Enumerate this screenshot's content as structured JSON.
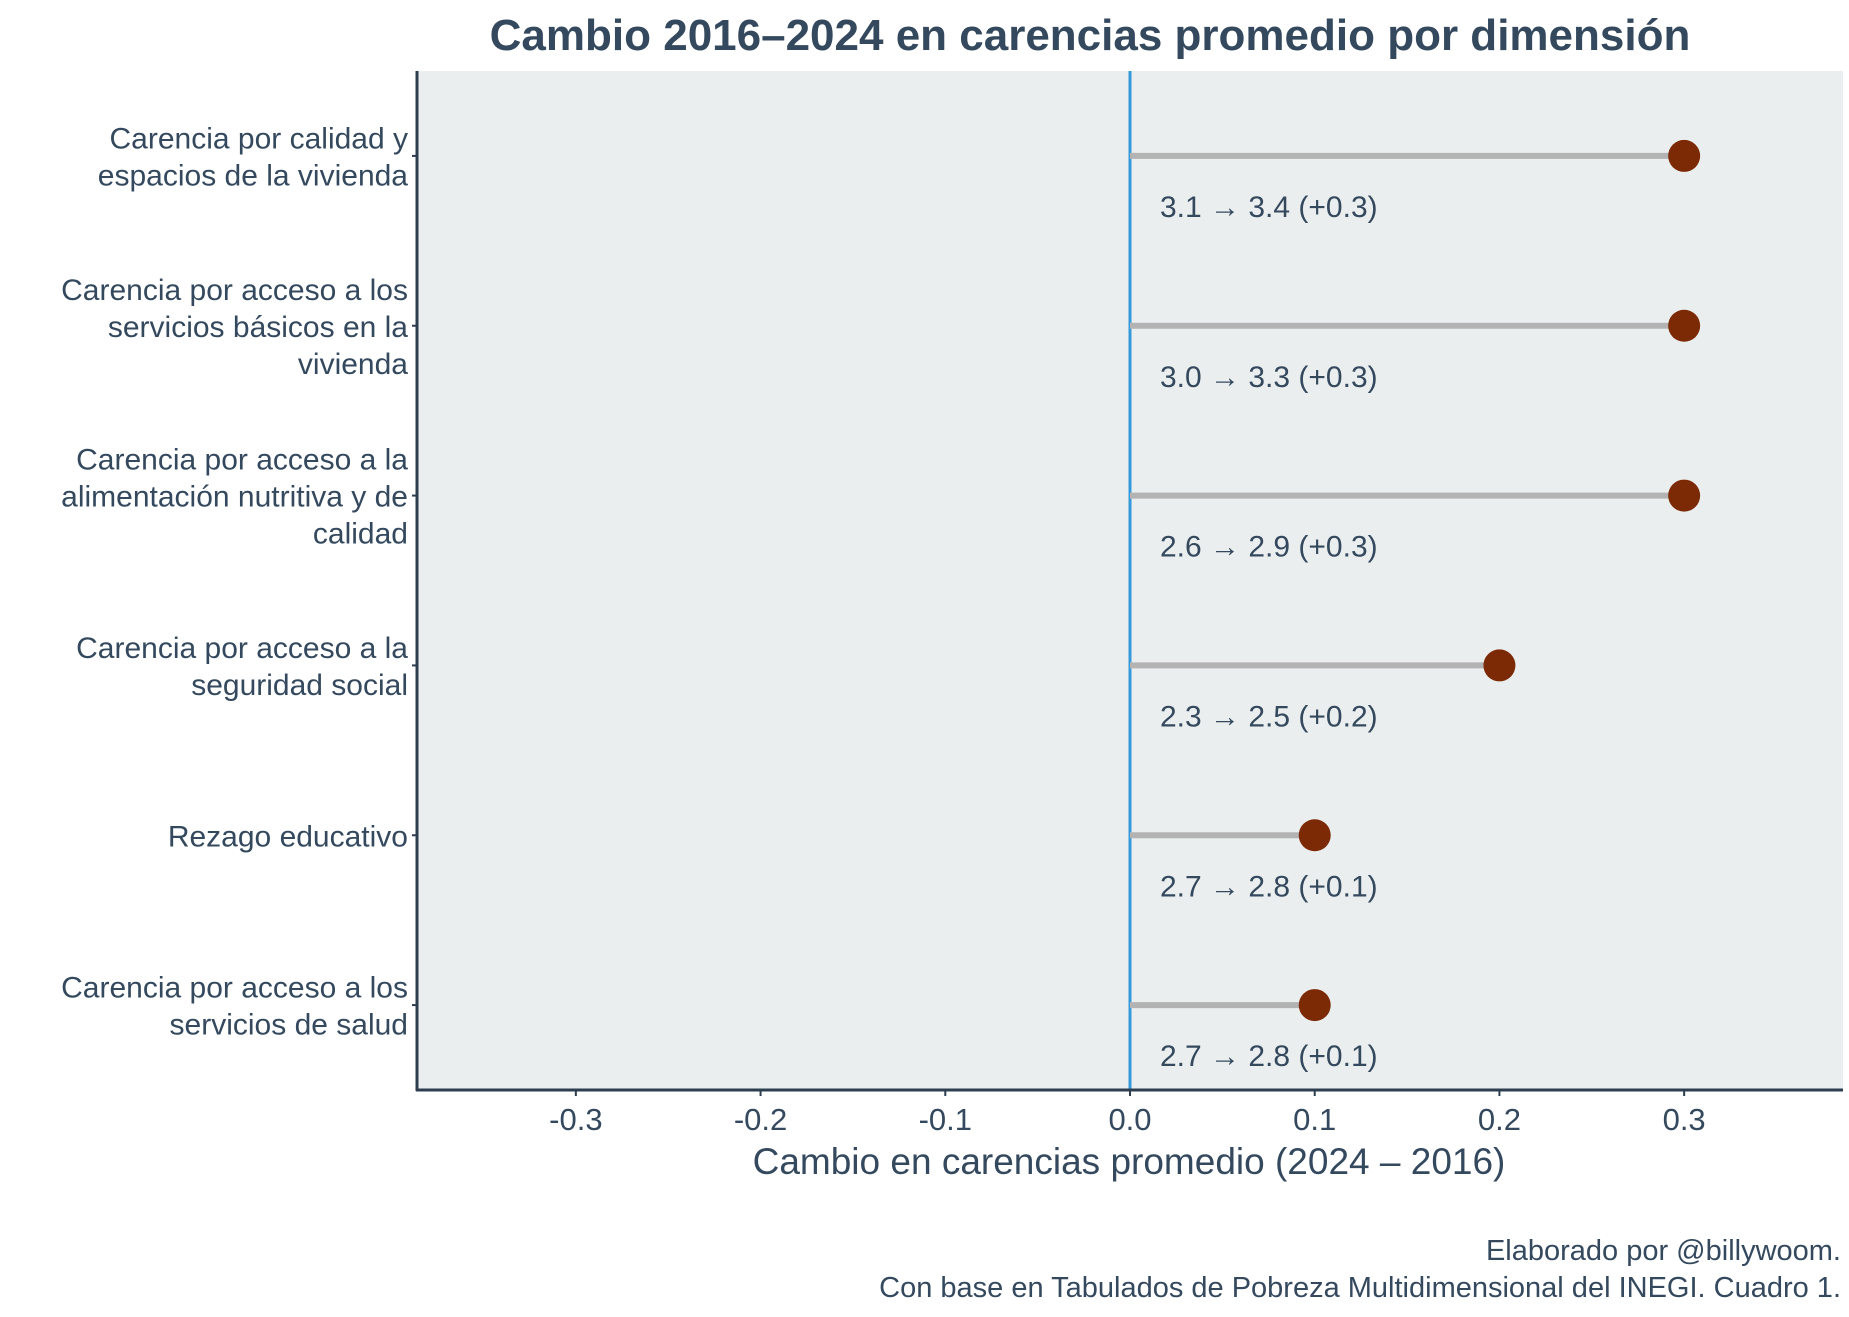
{
  "chart_data": {
    "type": "lollipop",
    "title": "Cambio 2016–2024 en carencias promedio por dimensión",
    "xlabel": "Cambio en carencias promedio (2024 – 2016)",
    "ylabel": "",
    "xlim": [
      -0.386,
      0.386
    ],
    "xticks": [
      -0.3,
      -0.2,
      -0.1,
      0.0,
      0.1,
      0.2,
      0.3
    ],
    "xtick_labels": [
      "-0.3",
      "-0.2",
      "-0.1",
      "0.0",
      "0.1",
      "0.2",
      "0.3"
    ],
    "grid": false,
    "categories": [
      [
        "Carencia por calidad y",
        "espacios de la vivienda"
      ],
      [
        "Carencia por acceso a los",
        "servicios básicos en la",
        "vivienda"
      ],
      [
        "Carencia por acceso a la",
        "alimentación nutritiva y de",
        "calidad"
      ],
      [
        "Carencia por acceso a la",
        "seguridad social"
      ],
      [
        "Rezago educativo"
      ],
      [
        "Carencia por acceso a los",
        "servicios de salud"
      ]
    ],
    "values": [
      0.3,
      0.3,
      0.3,
      0.2,
      0.1,
      0.1
    ],
    "annotations": [
      "3.1 → 3.4 (+0.3)",
      "3.0 → 3.3 (+0.3)",
      "2.6 → 2.9 (+0.3)",
      "2.3 → 2.5 (+0.2)",
      "2.7 → 2.8 (+0.1)",
      "2.7 → 2.8 (+0.1)"
    ],
    "caption": [
      "Elaborado por @billywoom.",
      "Con base en Tabulados de Pobreza Multidimensional del INEGI. Cuadro 1."
    ],
    "colors": {
      "panel": "#ebeeee",
      "stem": "#b3b3b3",
      "dot": "#7b2a05",
      "zero_line": "#3498db",
      "text": "#34495e",
      "axis": "#2c3e50"
    }
  }
}
